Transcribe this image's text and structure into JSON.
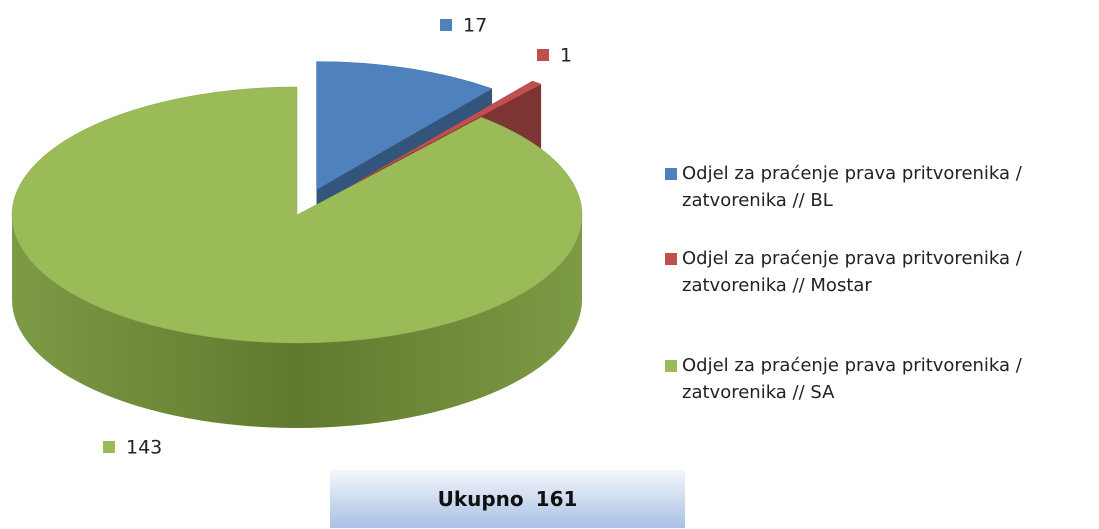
{
  "chart_data": {
    "type": "pie",
    "categories": [
      "Odjel za praćenje prava pritvorenika / zatvorenika // BL",
      "Odjel za praćenje prava pritvorenika / zatvorenika // Mostar",
      "Odjel za praćenje prava pritvorenika / zatvorenika // SA"
    ],
    "values": [
      17,
      1,
      143
    ],
    "colors": [
      "#4f81bd",
      "#c0504d",
      "#9bbb59"
    ],
    "total": {
      "label": "Ukupno",
      "value": 161
    }
  }
}
